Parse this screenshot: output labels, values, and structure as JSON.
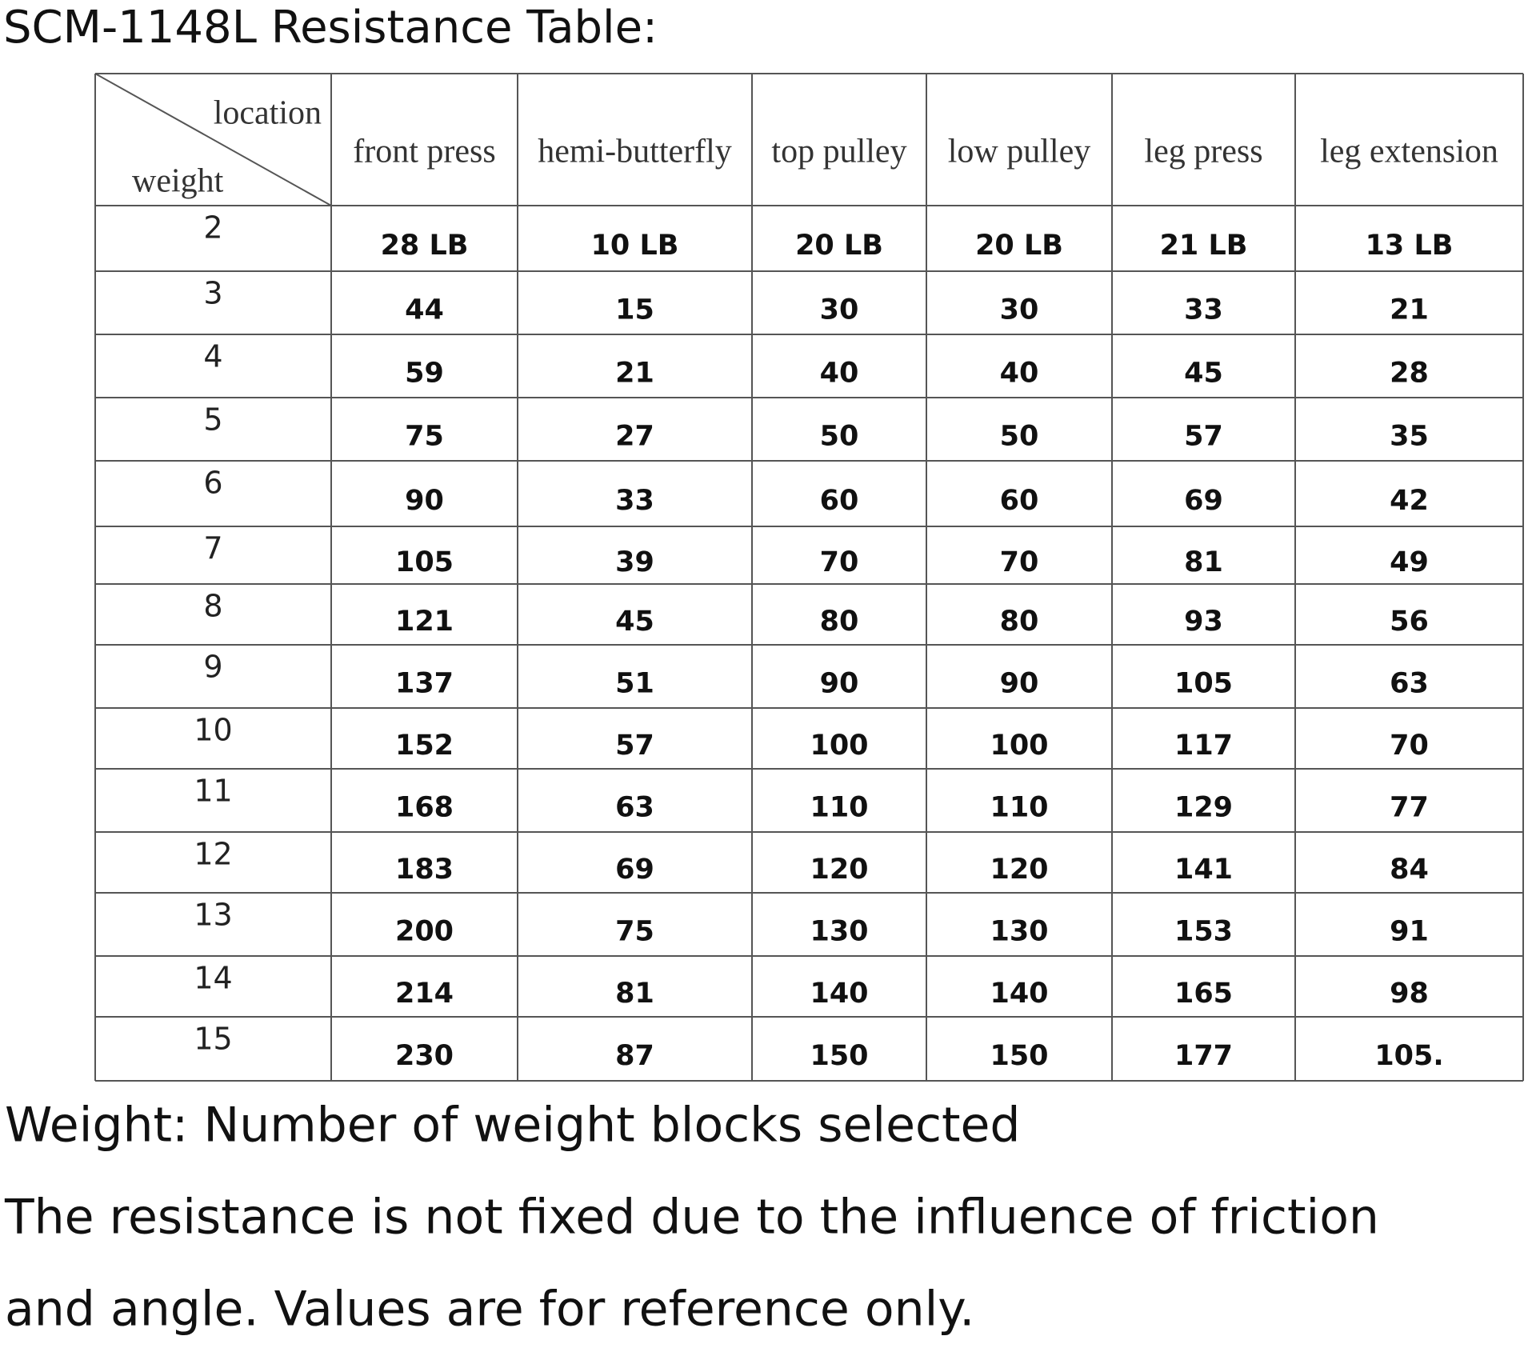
{
  "header": {
    "title": "SCM-1148L Resistance Table:"
  },
  "table": {
    "corner_top": "location",
    "corner_bottom": "weight",
    "columns": [
      "front press",
      "hemi-butterfly",
      "top pulley",
      "low pulley",
      "leg press",
      "leg extension"
    ],
    "rows": [
      [
        2,
        "28 LB",
        "10 LB",
        "20 LB",
        "20 LB",
        "21 LB",
        "13 LB"
      ],
      [
        3,
        44,
        15,
        30,
        30,
        33,
        21
      ],
      [
        4,
        59,
        21,
        40,
        40,
        45,
        28
      ],
      [
        5,
        75,
        27,
        50,
        50,
        57,
        35
      ],
      [
        6,
        90,
        33,
        60,
        60,
        69,
        42
      ],
      [
        7,
        105,
        39,
        70,
        70,
        81,
        49
      ],
      [
        8,
        121,
        45,
        80,
        80,
        93,
        56
      ],
      [
        9,
        137,
        51,
        90,
        90,
        105,
        63
      ],
      [
        10,
        152,
        57,
        100,
        100,
        117,
        70
      ],
      [
        11,
        168,
        63,
        110,
        110,
        129,
        77
      ],
      [
        12,
        183,
        69,
        120,
        120,
        141,
        84
      ],
      [
        13,
        200,
        75,
        130,
        130,
        153,
        91
      ],
      [
        14,
        214,
        81,
        140,
        140,
        165,
        98
      ],
      [
        15,
        230,
        87,
        150,
        150,
        177,
        "105."
      ]
    ]
  },
  "notes": [
    "Weight: Number of weight blocks selected",
    "The resistance is not fixed due to the influence of friction",
    "and angle. Values are for reference only."
  ]
}
